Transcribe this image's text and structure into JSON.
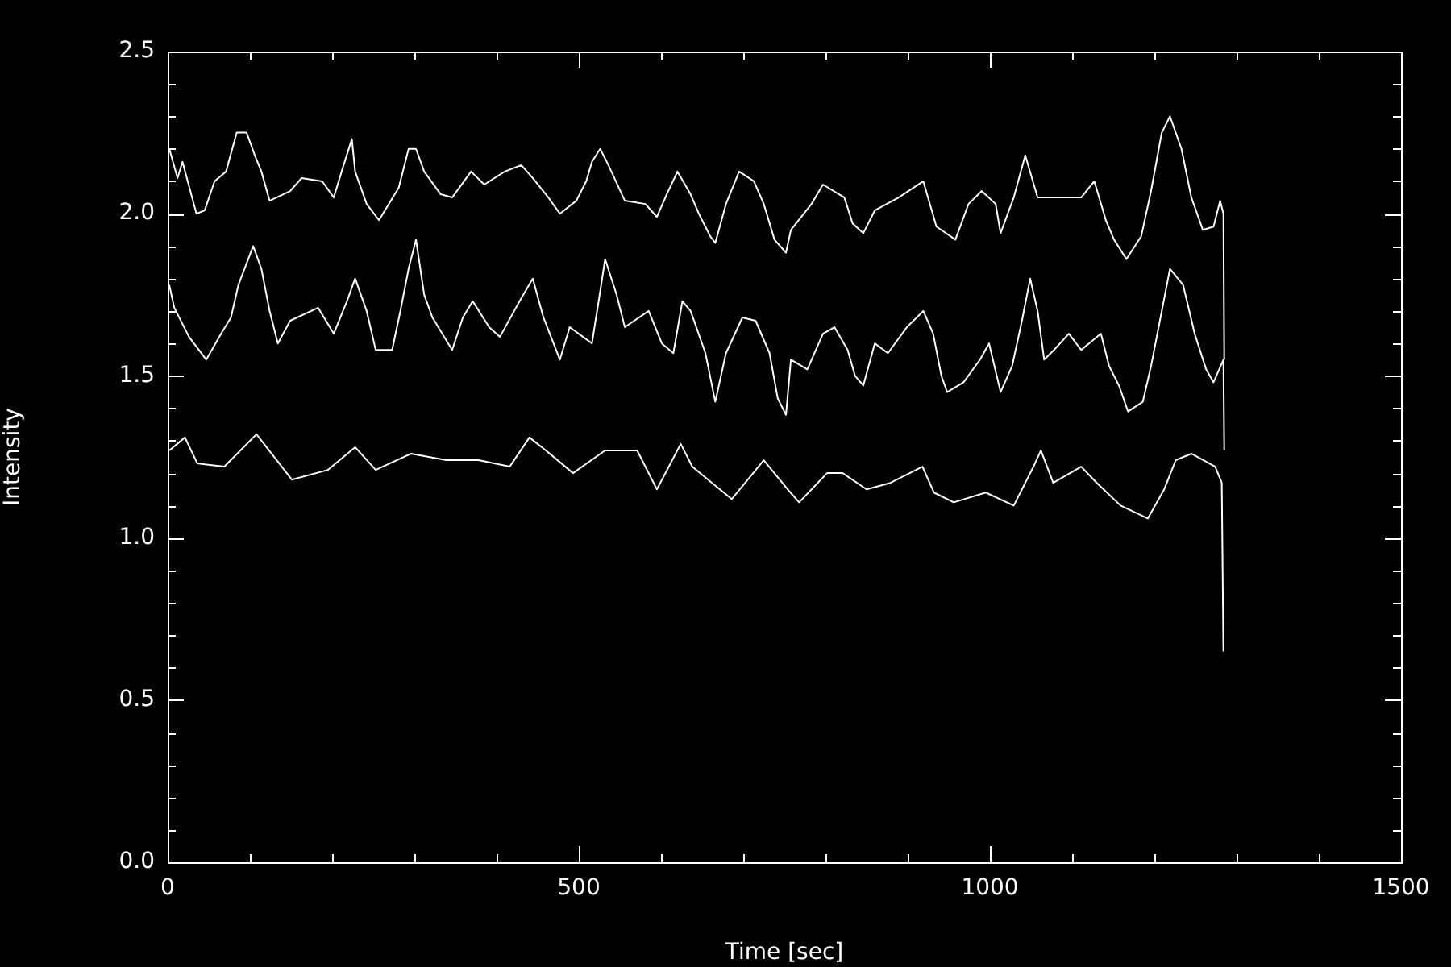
{
  "chart_data": {
    "type": "line",
    "xlabel": "Time [sec]",
    "ylabel": "Intensity",
    "xlim": [
      0,
      1500
    ],
    "xticks": [
      0,
      {
        "value": 100,
        "label": null
      },
      {
        "value": 200,
        "label": null
      },
      {
        "value": 300,
        "label": null
      },
      {
        "value": 400,
        "label": null
      },
      500,
      {
        "value": 600,
        "label": null
      },
      {
        "value": 700,
        "label": null
      },
      {
        "value": 800,
        "label": null
      },
      {
        "value": 900,
        "label": null
      },
      1000,
      {
        "value": 1100,
        "label": null
      },
      {
        "value": 1200,
        "label": null
      },
      {
        "value": 1300,
        "label": null
      },
      {
        "value": 1400,
        "label": null
      },
      1500
    ],
    "ylim": [
      0,
      2.5
    ],
    "yticks": [
      {
        "value": 0,
        "label": "0.0"
      },
      {
        "value": 0.1,
        "label": null
      },
      {
        "value": 0.2,
        "label": null
      },
      {
        "value": 0.3,
        "label": null
      },
      {
        "value": 0.4,
        "label": null
      },
      0.5,
      {
        "value": 0.6,
        "label": null
      },
      {
        "value": 0.7,
        "label": null
      },
      {
        "value": 0.8,
        "label": null
      },
      {
        "value": 0.9,
        "label": null
      },
      {
        "value": 1,
        "label": "1.0"
      },
      {
        "value": 1.1,
        "label": null
      },
      {
        "value": 1.2,
        "label": null
      },
      {
        "value": 1.3,
        "label": null
      },
      {
        "value": 1.4,
        "label": null
      },
      1.5,
      {
        "value": 1.6,
        "label": null
      },
      {
        "value": 1.7,
        "label": null
      },
      {
        "value": 1.8,
        "label": null
      },
      {
        "value": 1.9,
        "label": null
      },
      {
        "value": 2,
        "label": "2.0"
      },
      {
        "value": 2.1,
        "label": null
      },
      {
        "value": 2.2,
        "label": null
      },
      {
        "value": 2.3,
        "label": null
      },
      {
        "value": 2.4,
        "label": null
      },
      2.5
    ],
    "grid": false,
    "legend": false,
    "marker": "none",
    "line_style": "solid",
    "series": [
      {
        "color": "#ffffff",
        "x": [
          2,
          12,
          18,
          35,
          45,
          57,
          71,
          84,
          96,
          106,
          114,
          124,
          149,
          163,
          188,
          202,
          214,
          224,
          228,
          242,
          257,
          281,
          293,
          302,
          312,
          332,
          346,
          369,
          385,
          410,
          430,
          444,
          463,
          477,
          497,
          509,
          516,
          526,
          536,
          556,
          581,
          595,
          607,
          620,
          636,
          646,
          660,
          666,
          679,
          695,
          713,
          725,
          738,
          752,
          758,
          783,
          797,
          823,
          833,
          846,
          860,
          889,
          919,
          935,
          958,
          974,
          990,
          1007,
          1013,
          1029,
          1043,
          1058,
          1092,
          1111,
          1127,
          1141,
          1151,
          1166,
          1184,
          1196,
          1209,
          1219,
          1233,
          1245,
          1259,
          1272,
          1280,
          1284,
          1285
        ],
        "values": [
          2.2,
          2.11,
          2.16,
          2.0,
          2.01,
          2.1,
          2.13,
          2.25,
          2.25,
          2.18,
          2.13,
          2.04,
          2.07,
          2.11,
          2.1,
          2.05,
          2.15,
          2.23,
          2.13,
          2.03,
          1.98,
          2.08,
          2.2,
          2.2,
          2.13,
          2.06,
          2.05,
          2.13,
          2.09,
          2.13,
          2.15,
          2.11,
          2.05,
          2.0,
          2.04,
          2.1,
          2.16,
          2.2,
          2.15,
          2.04,
          2.03,
          1.99,
          2.06,
          2.13,
          2.06,
          2.0,
          1.93,
          1.91,
          2.03,
          2.13,
          2.1,
          2.03,
          1.92,
          1.88,
          1.95,
          2.03,
          2.09,
          2.05,
          1.97,
          1.94,
          2.01,
          2.05,
          2.1,
          1.96,
          1.92,
          2.03,
          2.07,
          2.03,
          1.94,
          2.05,
          2.18,
          2.05,
          2.05,
          2.05,
          2.1,
          1.98,
          1.92,
          1.86,
          1.93,
          2.07,
          2.25,
          2.3,
          2.2,
          2.05,
          1.95,
          1.96,
          2.04,
          2.0,
          1.55
        ]
      },
      {
        "color": "#ffffff",
        "x": [
          2,
          8,
          26,
          47,
          65,
          77,
          86,
          104,
          114,
          124,
          134,
          149,
          183,
          202,
          218,
          228,
          242,
          253,
          273,
          283,
          293,
          302,
          312,
          322,
          346,
          359,
          371,
          391,
          404,
          428,
          444,
          457,
          477,
          489,
          516,
          526,
          532,
          546,
          556,
          585,
          601,
          615,
          626,
          636,
          654,
          666,
          679,
          699,
          715,
          732,
          742,
          752,
          758,
          778,
          797,
          811,
          827,
          836,
          846,
          860,
          876,
          899,
          919,
          931,
          941,
          948,
          968,
          988,
          999,
          1013,
          1027,
          1039,
          1049,
          1058,
          1066,
          1078,
          1096,
          1111,
          1135,
          1145,
          1157,
          1168,
          1186,
          1196,
          1219,
          1235,
          1249,
          1263,
          1272,
          1284,
          1285
        ],
        "values": [
          1.78,
          1.71,
          1.62,
          1.55,
          1.63,
          1.68,
          1.78,
          1.9,
          1.83,
          1.7,
          1.6,
          1.67,
          1.71,
          1.63,
          1.73,
          1.8,
          1.7,
          1.58,
          1.58,
          1.7,
          1.83,
          1.92,
          1.75,
          1.68,
          1.58,
          1.68,
          1.73,
          1.65,
          1.62,
          1.73,
          1.8,
          1.68,
          1.55,
          1.65,
          1.6,
          1.76,
          1.86,
          1.75,
          1.65,
          1.7,
          1.6,
          1.57,
          1.73,
          1.7,
          1.57,
          1.42,
          1.57,
          1.68,
          1.67,
          1.57,
          1.43,
          1.38,
          1.55,
          1.52,
          1.63,
          1.65,
          1.58,
          1.5,
          1.47,
          1.6,
          1.57,
          1.65,
          1.7,
          1.63,
          1.5,
          1.45,
          1.48,
          1.55,
          1.6,
          1.45,
          1.53,
          1.67,
          1.8,
          1.7,
          1.55,
          1.58,
          1.63,
          1.58,
          1.63,
          1.53,
          1.47,
          1.39,
          1.42,
          1.53,
          1.83,
          1.78,
          1.63,
          1.52,
          1.48,
          1.55,
          1.27
        ]
      },
      {
        "color": "#ffffff",
        "x": [
          2,
          21,
          36,
          69,
          108,
          151,
          195,
          228,
          253,
          296,
          339,
          378,
          416,
          440,
          460,
          493,
          532,
          571,
          595,
          624,
          638,
          662,
          686,
          725,
          754,
          768,
          802,
          821,
          850,
          879,
          918,
          932,
          956,
          995,
          1029,
          1053,
          1062,
          1077,
          1111,
          1130,
          1159,
          1192,
          1212,
          1226,
          1245,
          1274,
          1282,
          1284
        ],
        "values": [
          1.27,
          1.31,
          1.23,
          1.22,
          1.32,
          1.18,
          1.21,
          1.28,
          1.21,
          1.26,
          1.24,
          1.24,
          1.22,
          1.31,
          1.27,
          1.2,
          1.27,
          1.27,
          1.15,
          1.29,
          1.22,
          1.17,
          1.12,
          1.24,
          1.15,
          1.11,
          1.2,
          1.2,
          1.15,
          1.17,
          1.22,
          1.14,
          1.11,
          1.14,
          1.1,
          1.22,
          1.27,
          1.17,
          1.22,
          1.17,
          1.1,
          1.06,
          1.15,
          1.24,
          1.26,
          1.22,
          1.17,
          0.65
        ]
      }
    ]
  }
}
